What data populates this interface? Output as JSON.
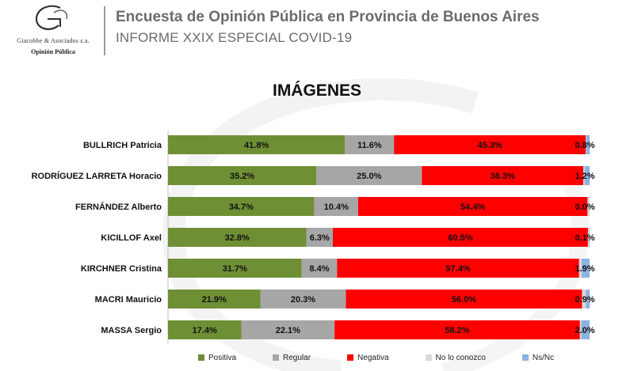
{
  "header": {
    "company": "Giacobbe & Asociados s.a.",
    "company_sub": "Opinión Pública",
    "title": "Encuesta de Opinión Pública en Provincia de Buenos Aires",
    "subtitle": "INFORME XXIX ESPECIAL COVID-19"
  },
  "chart_data": {
    "type": "bar",
    "orientation": "horizontal",
    "stacked": true,
    "normalized": true,
    "title": "IMÁGENES",
    "categories": [
      "BULLRICH Patricia",
      "RODRÍGUEZ LARRETA Horacio",
      "FERNÁNDEZ Alberto",
      "KICILLOF Axel",
      "KIRCHNER Cristina",
      "MACRI Mauricio",
      "MASSA Sergio"
    ],
    "series": [
      {
        "name": "Positiva",
        "color": "#6f8f34",
        "values": [
          41.8,
          35.2,
          34.7,
          32.8,
          31.7,
          21.9,
          17.4
        ]
      },
      {
        "name": "Regular",
        "color": "#a6a6a6",
        "values": [
          11.6,
          25.0,
          10.4,
          6.3,
          8.4,
          20.3,
          22.1
        ]
      },
      {
        "name": "Negativa",
        "color": "#fe0000",
        "values": [
          45.3,
          38.3,
          54.4,
          60.5,
          57.4,
          56.0,
          58.2
        ]
      },
      {
        "name": "No lo conozco",
        "color": "#d9d9d9",
        "values": [
          0.1,
          0.3,
          0.5,
          0.3,
          0.6,
          0.9,
          0.3
        ]
      },
      {
        "name": "Ns/Nc",
        "color": "#8db3e2",
        "values": [
          0.8,
          1.2,
          0.0,
          0.1,
          1.9,
          0.9,
          2.0
        ]
      }
    ],
    "value_labels": [
      [
        "41.8%",
        "11.6%",
        "45.3%",
        "",
        "0.8%"
      ],
      [
        "35.2%",
        "25.0%",
        "38.3%",
        "",
        "1.2%"
      ],
      [
        "34.7%",
        "10.4%",
        "54.4%",
        "",
        "0.0%"
      ],
      [
        "32.8%",
        "6.3%",
        "60.5%",
        "",
        "0.1%"
      ],
      [
        "31.7%",
        "8.4%",
        "57.4%",
        "",
        "1.9%"
      ],
      [
        "21.9%",
        "20.3%",
        "56.0%",
        "",
        "0.9%"
      ],
      [
        "17.4%",
        "22.1%",
        "58.2%",
        "",
        "2.0%"
      ]
    ],
    "legend_position": "bottom"
  }
}
